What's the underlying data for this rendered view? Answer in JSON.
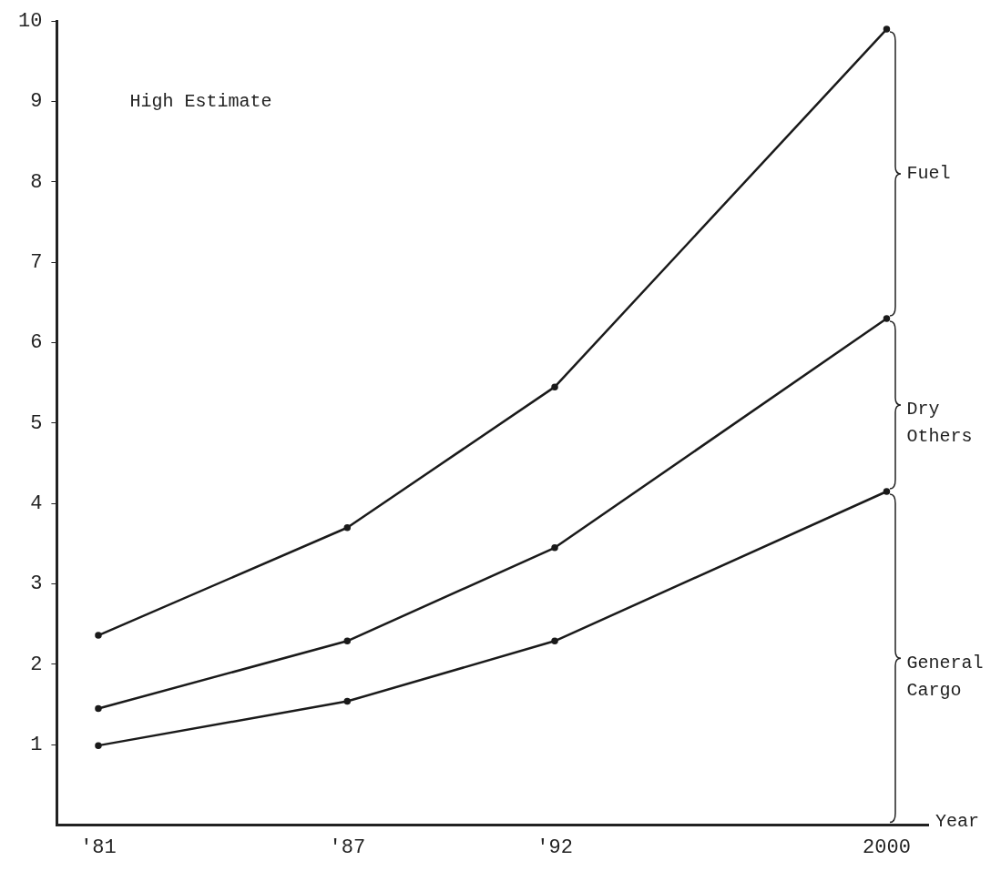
{
  "chart_data": {
    "type": "line",
    "xlabel": "Year",
    "x": [
      1981,
      1987,
      1992,
      2000
    ],
    "series": [
      {
        "color": "#1a1a1a",
        "values": [
          2.36,
          3.7,
          5.45,
          9.9
        ]
      },
      {
        "color": "#1a1a1a",
        "values": [
          1.45,
          2.29,
          3.45,
          6.3
        ]
      },
      {
        "color": "#1a1a1a",
        "values": [
          0.99,
          1.54,
          2.29,
          4.15
        ]
      }
    ],
    "xlim": [
      1980,
      2001
    ],
    "xticks": [
      {
        "value": 1981,
        "label": "'81"
      },
      {
        "value": 1987,
        "label": "'87"
      },
      {
        "value": 1992,
        "label": "'92"
      },
      2000
    ],
    "ylim": [
      0,
      10
    ],
    "yticks": [
      1,
      2,
      3,
      4,
      5,
      6,
      7,
      8,
      9,
      10
    ],
    "annotations": [
      "High Estimate",
      "Fuel",
      "Dry\nOthers",
      "General\nCargo"
    ],
    "marker": "circle",
    "line_style": "solid",
    "grid": false,
    "legend": false
  }
}
